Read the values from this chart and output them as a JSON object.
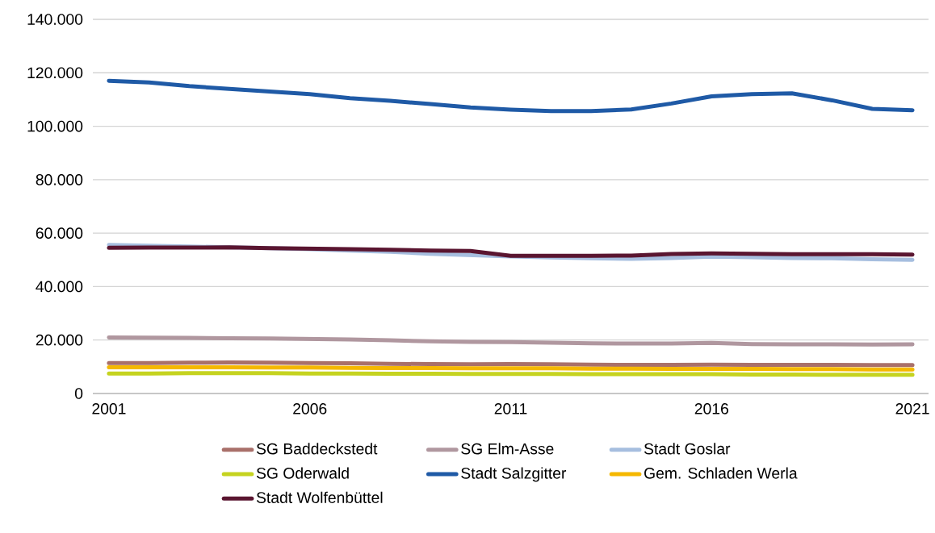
{
  "chart_data": {
    "type": "line",
    "x": [
      2001,
      2002,
      2003,
      2004,
      2005,
      2006,
      2007,
      2008,
      2009,
      2010,
      2011,
      2012,
      2013,
      2014,
      2015,
      2016,
      2017,
      2018,
      2019,
      2020,
      2021
    ],
    "series": [
      {
        "name": "SG Baddeckstedt",
        "color": "#a9706a",
        "values": [
          11400,
          11400,
          11500,
          11600,
          11500,
          11400,
          11300,
          11100,
          11000,
          10900,
          11000,
          10900,
          10800,
          10700,
          10700,
          10800,
          10700,
          10700,
          10700,
          10600,
          10600
        ]
      },
      {
        "name": "SG Elm-Asse",
        "color": "#b0979f",
        "values": [
          21000,
          20900,
          20800,
          20700,
          20600,
          20400,
          20200,
          19900,
          19500,
          19300,
          19200,
          19000,
          18800,
          18700,
          18700,
          18900,
          18500,
          18400,
          18400,
          18300,
          18400
        ]
      },
      {
        "name": "Stadt Goslar",
        "color": "#a6bedf",
        "values": [
          55600,
          55300,
          55000,
          null,
          54400,
          54000,
          53500,
          53000,
          52300,
          51800,
          51300,
          50900,
          50600,
          50400,
          50700,
          51200,
          51000,
          50700,
          50600,
          50200,
          50000
        ]
      },
      {
        "name": "SG Oderwald",
        "color": "#c5d320",
        "values": [
          7500,
          7500,
          7600,
          7600,
          7600,
          7500,
          7500,
          7400,
          7400,
          7300,
          7300,
          7300,
          7200,
          7200,
          7200,
          7200,
          7100,
          7100,
          7000,
          7000,
          7000
        ]
      },
      {
        "name": "Stadt Salzgitter",
        "color": "#1f5aa6",
        "values": [
          117000,
          116400,
          115000,
          114000,
          113000,
          112000,
          110500,
          109500,
          108300,
          107000,
          106200,
          105700,
          105700,
          106300,
          108500,
          111200,
          112000,
          112300,
          109700,
          106500,
          106000
        ]
      },
      {
        "name": "Gem. Schladen Werla",
        "color": "#f5b800",
        "values": [
          9800,
          9800,
          9800,
          9800,
          9700,
          9700,
          9600,
          9500,
          9500,
          9400,
          9400,
          9400,
          9300,
          9300,
          9200,
          9200,
          9200,
          9100,
          9100,
          9000,
          9000
        ]
      },
      {
        "name": "Stadt Wolfenbüttel",
        "color": "#5a1530",
        "values": [
          54500,
          54600,
          54600,
          54700,
          54400,
          54200,
          54000,
          53800,
          53500,
          53300,
          51500,
          51500,
          51500,
          51600,
          52200,
          52400,
          52300,
          52100,
          52100,
          52100,
          52000
        ]
      }
    ],
    "xlim": [
      2000.6,
      2021.4
    ],
    "xticks": [
      2001,
      2006,
      2011,
      2016,
      2021
    ],
    "ylim": [
      0,
      140000
    ],
    "yticks": [
      {
        "value": 0,
        "label": "0"
      },
      {
        "value": 20000,
        "label": "20.000"
      },
      {
        "value": 40000,
        "label": "40.000"
      },
      {
        "value": 60000,
        "label": "60.000"
      },
      {
        "value": 80000,
        "label": "80.000"
      },
      {
        "value": 100000,
        "label": "100.000"
      },
      {
        "value": 120000,
        "label": "120.000"
      },
      {
        "value": 140000,
        "label": "140.000"
      }
    ],
    "grid": "y",
    "legend": "bottom",
    "marker": "none",
    "line_style": "solid"
  }
}
